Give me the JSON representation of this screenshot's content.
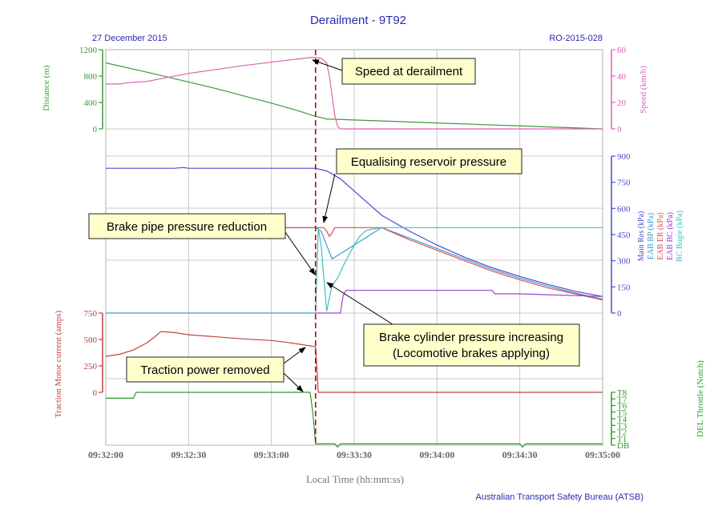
{
  "chart_data": {
    "type": "line",
    "title": "Derailment - 9T92",
    "date": "27 December 2015",
    "report_id": "RO-2015-028",
    "source": "Australian Transport Safety Bureau (ATSB)",
    "xlabel": "Local Time (hh:mm:ss)",
    "x_ticks": [
      "09:32:00",
      "09:32:30",
      "09:33:00",
      "09:33:30",
      "09:34:00",
      "09:34:30",
      "09:35:00"
    ],
    "xlim_seconds": [
      0,
      180
    ],
    "derailment_time_s": 76,
    "grid": true,
    "colors": {
      "distance": "#3a9a3a",
      "speed": "#e060b0",
      "main_res": "#4a4ad0",
      "bp": "#3a9ad0",
      "er": "#e05050",
      "bc": "#a040d0",
      "bc_bogie": "#40c0c0",
      "traction": "#c04040",
      "throttle": "#2a9a2a",
      "derail_line": "#c00000",
      "title": "#2a2ab0"
    },
    "panels": [
      {
        "id": "top",
        "left_axis": {
          "label": "Distance (m)",
          "ticks": [
            "0",
            "400",
            "800",
            "1200"
          ],
          "lim": [
            0,
            1200
          ]
        },
        "right_axis": {
          "label": "Speed (km/h)",
          "ticks": [
            "0",
            "20",
            "40",
            "60"
          ],
          "lim": [
            0,
            60
          ]
        },
        "series": [
          {
            "name": "Distance (m)",
            "axis": "left",
            "x": [
              0,
              10,
              20,
              30,
              40,
              50,
              60,
              70,
              76,
              80,
              180
            ],
            "y": [
              1000,
              905,
              810,
              710,
              610,
              500,
              390,
              270,
              190,
              150,
              0
            ]
          },
          {
            "name": "Speed (km/h)",
            "axis": "right",
            "x": [
              0,
              5,
              8,
              15,
              20,
              30,
              40,
              50,
              60,
              70,
              74,
              76,
              78,
              80,
              81,
              82,
              83,
              84,
              85,
              180
            ],
            "y": [
              34,
              34,
              35,
              36,
              38,
              42,
              45,
              48,
              50.5,
              53,
              54,
              54,
              53.5,
              50,
              40,
              25,
              10,
              2,
              0,
              0
            ]
          }
        ]
      },
      {
        "id": "middle",
        "right_axis": {
          "ticks": [
            "0",
            "150",
            "300",
            "450",
            "600",
            "750",
            "900"
          ],
          "lim": [
            0,
            900
          ]
        },
        "series_labels": [
          "Main Res (kPa)",
          "EAB BP (kPa)",
          "EAB ER (kPa)",
          "EAB BC (kPa)",
          "BC Bogie (kPa)"
        ],
        "series": [
          {
            "name": "Main Res (kPa)",
            "x": [
              0,
              25,
              28,
              30,
              76,
              80,
              85,
              90,
              95,
              100,
              110,
              120,
              130,
              140,
              150,
              160,
              170,
              180
            ],
            "y": [
              830,
              830,
              835,
              830,
              830,
              815,
              770,
              700,
              630,
              560,
              470,
              390,
              320,
              260,
              210,
              165,
              125,
              95
            ]
          },
          {
            "name": "EAB BP (kPa)",
            "x": [
              0,
              76,
              78,
              80,
              82,
              100,
              110,
              120,
              130,
              140,
              150,
              160,
              170,
              180
            ],
            "y": [
              490,
              490,
              470,
              390,
              310,
              490,
              430,
              370,
              310,
              250,
              200,
              155,
              115,
              80
            ]
          },
          {
            "name": "EAB ER (kPa)",
            "x": [
              0,
              79,
              80,
              81,
              82,
              83,
              100,
              110,
              120,
              130,
              140,
              150,
              160,
              170,
              180
            ],
            "y": [
              490,
              490,
              470,
              440,
              460,
              490,
              490,
              420,
              360,
              300,
              240,
              190,
              145,
              110,
              75
            ]
          },
          {
            "name": "EAB BC (kPa)",
            "x": [
              0,
              85,
              86,
              87,
              100,
              110,
              140,
              141,
              150,
              160,
              170,
              180
            ],
            "y": [
              0,
              0,
              100,
              130,
              130,
              130,
              130,
              110,
              110,
              105,
              100,
              95
            ]
          },
          {
            "name": "BC Bogie (kPa)",
            "x": [
              0,
              76,
              77,
              78,
              80,
              82,
              84,
              86,
              88,
              90,
              92,
              94,
              96,
              100,
              180
            ],
            "y": [
              0,
              0,
              490,
              390,
              10,
              160,
              200,
              270,
              330,
              390,
              440,
              470,
              480,
              490,
              490
            ]
          }
        ]
      },
      {
        "id": "bottom",
        "left_axis": {
          "label": "Traction Motor current (amps)",
          "ticks": [
            "0",
            "250",
            "500",
            "750"
          ],
          "lim": [
            0,
            750
          ]
        },
        "right_axis": {
          "label": "DEL Throttle (Notch)",
          "ticks": [
            "DB",
            "T1",
            "T2",
            "T3",
            "T4",
            "T5",
            "T6",
            "T7",
            "T8"
          ],
          "lim": [
            0,
            8
          ]
        },
        "series": [
          {
            "name": "Traction Motor current (amps)",
            "axis": "left",
            "x": [
              0,
              5,
              10,
              15,
              18,
              20,
              25,
              30,
              40,
              50,
              60,
              65,
              70,
              74,
              76,
              77,
              180
            ],
            "y": [
              340,
              360,
              400,
              470,
              530,
              575,
              565,
              545,
              525,
              505,
              490,
              475,
              455,
              440,
              430,
              0,
              0
            ]
          },
          {
            "name": "DEL Throttle (Notch)",
            "axis": "right",
            "x": [
              0,
              10,
              11,
              74,
              75,
              76,
              77,
              83,
              84,
              85,
              150,
              151,
              152,
              180
            ],
            "y": [
              7.1,
              7.1,
              8,
              8,
              5,
              0.2,
              0.2,
              0.2,
              -0.3,
              0.2,
              0.2,
              -0.3,
              0.2,
              0.2
            ]
          }
        ]
      }
    ],
    "annotations": [
      "Speed at derailment",
      "Equalising reservoir pressure",
      "Brake pipe pressure reduction",
      "Brake cylinder pressure increasing",
      "(Locomotive brakes applying)",
      "Traction power removed"
    ]
  }
}
